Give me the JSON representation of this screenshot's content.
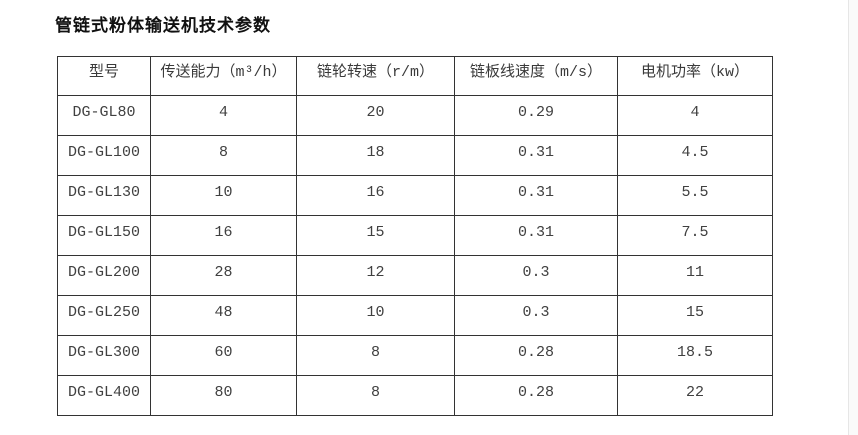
{
  "page": {
    "title": "管链式粉体输送机技术参数"
  },
  "table": {
    "columns": [
      "型号",
      "传送能力（m³/h）",
      "链轮转速（r/m）",
      "链板线速度（m/s）",
      "电机功率（kw）"
    ],
    "rows": [
      [
        "DG-GL80",
        "4",
        "20",
        "0.29",
        "4"
      ],
      [
        "DG-GL100",
        "8",
        "18",
        "0.31",
        "4.5"
      ],
      [
        "DG-GL130",
        "10",
        "16",
        "0.31",
        "5.5"
      ],
      [
        "DG-GL150",
        "16",
        "15",
        "0.31",
        "7.5"
      ],
      [
        "DG-GL200",
        "28",
        "12",
        "0.3",
        "11"
      ],
      [
        "DG-GL250",
        "48",
        "10",
        "0.3",
        "15"
      ],
      [
        "DG-GL300",
        "60",
        "8",
        "0.28",
        "18.5"
      ],
      [
        "DG-GL400",
        "80",
        "8",
        "0.28",
        "22"
      ]
    ]
  }
}
